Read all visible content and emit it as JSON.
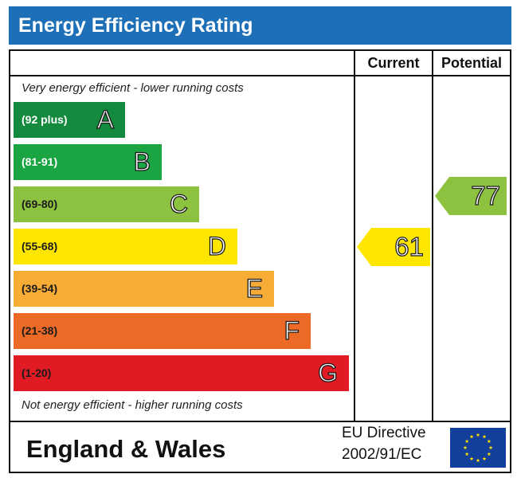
{
  "header": {
    "title": "Energy Efficiency Rating"
  },
  "columns": {
    "current": "Current",
    "potential": "Potential"
  },
  "notes": {
    "top": "Very energy efficient - lower running costs",
    "bottom": "Not energy efficient - higher running costs"
  },
  "bands": [
    {
      "range": "(92 plus)",
      "letter": "A",
      "color": "#138a3e",
      "range_color": "#ffffff"
    },
    {
      "range": "(81-91)",
      "letter": "B",
      "color": "#1aa542",
      "range_color": "#ffffff"
    },
    {
      "range": "(69-80)",
      "letter": "C",
      "color": "#8cc23f",
      "range_color": "#1a1a1a"
    },
    {
      "range": "(55-68)",
      "letter": "D",
      "color": "#ffe600",
      "range_color": "#1a1a1a"
    },
    {
      "range": "(39-54)",
      "letter": "E",
      "color": "#f7ad35",
      "range_color": "#1a1a1a"
    },
    {
      "range": "(21-38)",
      "letter": "F",
      "color": "#ec6a26",
      "range_color": "#1a1a1a"
    },
    {
      "range": "(1-20)",
      "letter": "G",
      "color": "#e11b24",
      "range_color": "#1a1a1a"
    }
  ],
  "current_rating": {
    "value": "61",
    "band": "D",
    "color": "#ffe600"
  },
  "potential_rating": {
    "value": "77",
    "band": "C",
    "color": "#8cc23f"
  },
  "footer": {
    "region": "England & Wales",
    "directive_line1": "EU Directive",
    "directive_line2": "2002/91/EC",
    "flag_icon": "eu-flag-icon",
    "flag_color": "#123f9b",
    "star_color": "#ffdd00"
  }
}
